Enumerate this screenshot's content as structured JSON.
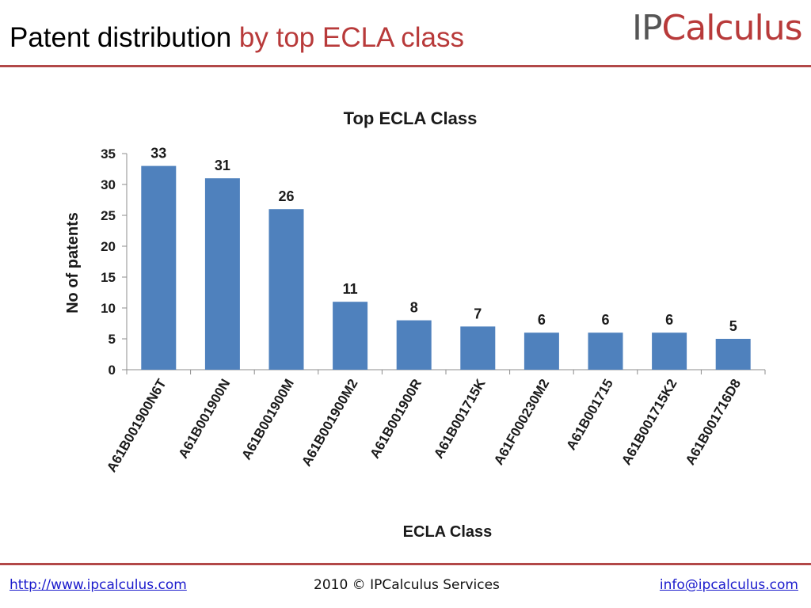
{
  "slide": {
    "title_main": "Patent distribution",
    "title_accent": "by top ECLA class"
  },
  "logo": {
    "part1": "IP",
    "part2": "Calculus"
  },
  "colors": {
    "accent": "#b83a3a",
    "bar": "#4f81bd",
    "rule": "#b24848",
    "link": "#1a1acc"
  },
  "chart_data": {
    "type": "bar",
    "title": "Top ECLA Class",
    "xlabel": "ECLA Class",
    "ylabel": "No of patents",
    "categories": [
      "A61B001900N6T",
      "A61B001900N",
      "A61B001900M",
      "A61B001900M2",
      "A61B001900R",
      "A61B001715K",
      "A61F000230M2",
      "A61B001715",
      "A61B001715K2",
      "A61B001716D8"
    ],
    "values": [
      33,
      31,
      26,
      11,
      8,
      7,
      6,
      6,
      6,
      5
    ],
    "ylim": [
      0,
      35
    ],
    "yticks": [
      0,
      5,
      10,
      15,
      20,
      25,
      30,
      35
    ],
    "data_labels": true,
    "grid": false,
    "legend": false
  },
  "footer": {
    "url": "http://www.ipcalculus.com",
    "copyright": "2010 © IPCalculus Services",
    "email": "info@ipcalculus.com"
  }
}
